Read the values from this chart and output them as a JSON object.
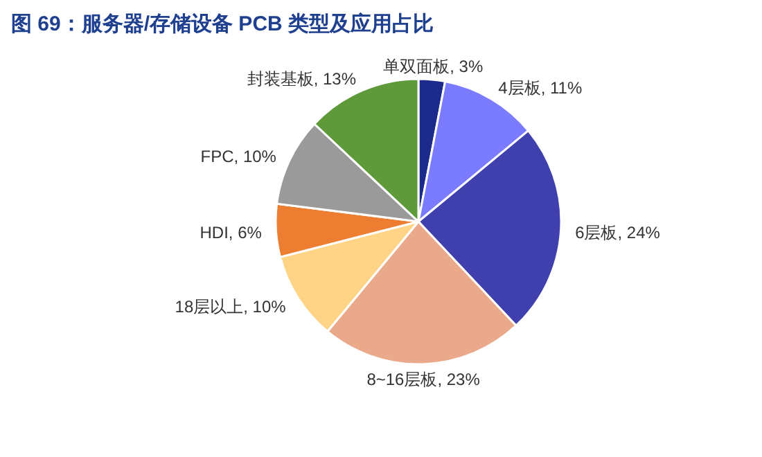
{
  "chart_data": {
    "type": "pie",
    "title": "图 69：服务器/存储设备 PCB 类型及应用占比",
    "categories": [
      "单双面板",
      "4层板",
      "6层板",
      "8~16层板",
      "18层以上",
      "HDI",
      "FPC",
      "封装基板"
    ],
    "values": [
      3,
      11,
      24,
      23,
      10,
      6,
      10,
      13
    ],
    "colors": [
      "#1c2a8c",
      "#7b7bff",
      "#3f3fae",
      "#eba98c",
      "#ffd486",
      "#ed7d31",
      "#9a9a9a",
      "#5e9a3a"
    ],
    "value_labels": [
      "3%",
      "11%",
      "24%",
      "23%",
      "10%",
      "6%",
      "10%",
      "13%"
    ]
  }
}
